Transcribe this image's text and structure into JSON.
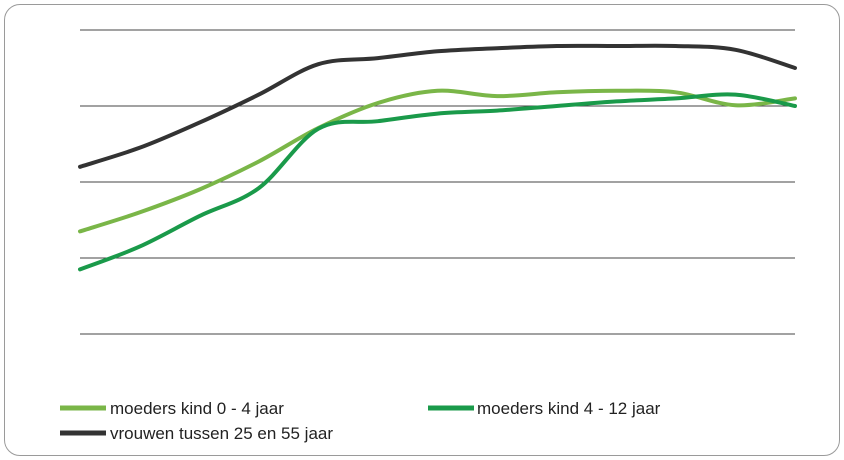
{
  "chart_data": {
    "type": "line",
    "title": "",
    "xlabel": "",
    "ylabel": "",
    "x": [
      0,
      1,
      2,
      3,
      4,
      5,
      6,
      7,
      8,
      9,
      10,
      11,
      12
    ],
    "ylim": [
      0,
      4
    ],
    "grid": true,
    "legend_position": "bottom",
    "series": [
      {
        "name": "moeders kind 0 - 4 jaar",
        "color": "#7ab648",
        "values": [
          1.35,
          1.6,
          1.9,
          2.27,
          2.71,
          3.04,
          3.2,
          3.13,
          3.18,
          3.2,
          3.18,
          3.01,
          3.1
        ]
      },
      {
        "name": "moeders kind 4 - 12 jaar",
        "color": "#1a9a4a",
        "values": [
          0.85,
          1.15,
          1.55,
          1.92,
          2.7,
          2.8,
          2.9,
          2.94,
          3.0,
          3.06,
          3.1,
          3.15,
          3.0
        ]
      },
      {
        "name": "vrouwen tussen 25 en 55 jaar",
        "color": "#333333",
        "values": [
          2.2,
          2.45,
          2.78,
          3.15,
          3.55,
          3.63,
          3.72,
          3.76,
          3.79,
          3.79,
          3.79,
          3.74,
          3.5
        ]
      }
    ]
  }
}
